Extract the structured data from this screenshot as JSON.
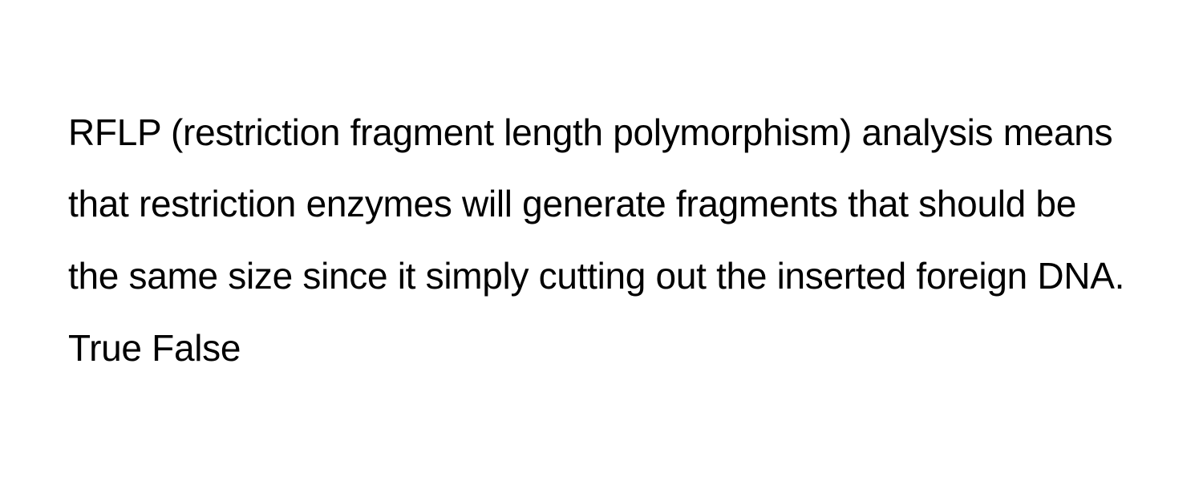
{
  "question": {
    "text": "RFLP (restriction fragment length polymorphism) analysis means that restriction enzymes will generate fragments that should be the same size since it simply cutting out the inserted foreign DNA. True False",
    "font_size": 46,
    "line_height": 1.95,
    "text_color": "#000000",
    "background_color": "#ffffff"
  }
}
